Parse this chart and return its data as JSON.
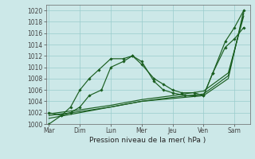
{
  "xlabel": "Pression niveau de la mer( hPa )",
  "background_color": "#cce8e8",
  "grid_color": "#99cccc",
  "line_color": "#1a5e20",
  "xlim": [
    -0.1,
    6.5
  ],
  "ylim": [
    1000,
    1021
  ],
  "yticks": [
    1000,
    1002,
    1004,
    1006,
    1008,
    1010,
    1012,
    1014,
    1016,
    1018,
    1020
  ],
  "xtick_labels": [
    "Mar",
    "Dim",
    "Lun",
    "Mer",
    "Jeu",
    "Ven",
    "Sam"
  ],
  "xtick_positions": [
    0,
    1,
    2,
    3,
    4,
    5,
    6
  ],
  "line1_x": [
    0,
    0.4,
    0.7,
    1.0,
    1.3,
    1.6,
    2.0,
    2.4,
    2.7,
    3.0,
    3.4,
    3.7,
    4.0,
    4.3,
    4.7,
    5.0,
    5.3,
    5.7,
    6.0,
    6.3
  ],
  "line1_y": [
    1002,
    1001.5,
    1003,
    1006,
    1008,
    1009.5,
    1011.5,
    1011.5,
    1012,
    1010.5,
    1008,
    1007,
    1006,
    1005.5,
    1005.5,
    1005,
    1009,
    1014.5,
    1017,
    1020
  ],
  "line2_x": [
    0,
    0.4,
    0.7,
    1.0,
    1.3,
    1.7,
    2.0,
    2.4,
    2.7,
    3.0,
    3.4,
    3.7,
    4.0,
    4.4,
    4.7,
    5.0,
    5.3,
    5.7,
    6.0,
    6.3
  ],
  "line2_y": [
    1000,
    1001.5,
    1002,
    1003,
    1005,
    1006,
    1010,
    1011,
    1012,
    1011,
    1007.5,
    1006,
    1005.5,
    1005,
    1005,
    1005,
    1009,
    1013.5,
    1015,
    1017
  ],
  "line3_x": [
    0,
    1,
    2,
    3,
    4,
    5,
    5.8,
    6.3
  ],
  "line3_y": [
    1001,
    1002,
    1003,
    1004,
    1004.5,
    1005,
    1008,
    1020
  ],
  "line4_x": [
    0,
    1,
    2,
    3,
    4,
    5,
    5.8,
    6.3
  ],
  "line4_y": [
    1001.5,
    1002.2,
    1003,
    1004,
    1004.7,
    1005.3,
    1008.5,
    1019.5
  ],
  "line5_x": [
    0,
    1,
    2,
    3,
    4,
    5,
    5.8,
    6.3
  ],
  "line5_y": [
    1001.8,
    1002.5,
    1003.3,
    1004.3,
    1005,
    1005.8,
    1009,
    1019
  ]
}
